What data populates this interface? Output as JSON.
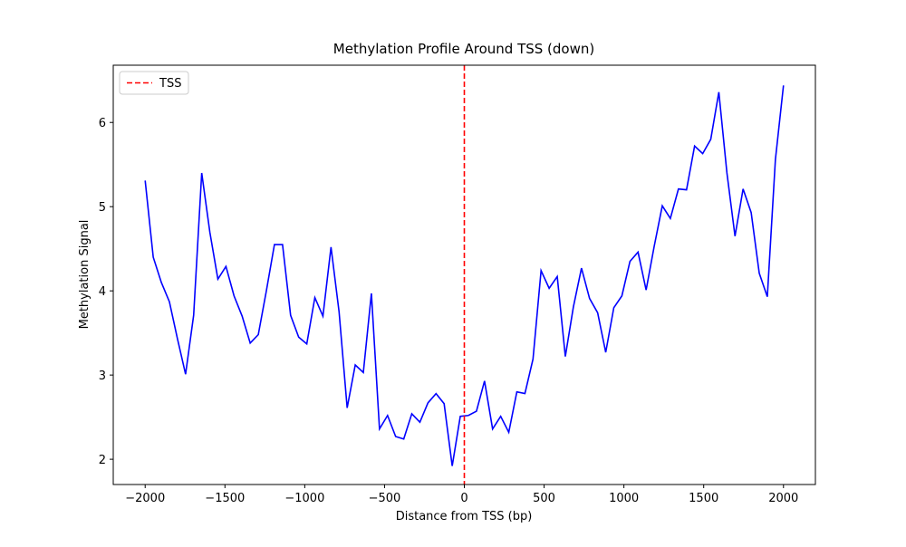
{
  "chart_data": {
    "type": "line",
    "title": "Methylation Profile Around TSS (down)",
    "x_label": "Distance from TSS (bp)",
    "y_label": "Methylation Signal",
    "x": [
      -2000,
      -1949.4,
      -1898.7,
      -1848.1,
      -1797.5,
      -1746.8,
      -1696.2,
      -1645.6,
      -1594.9,
      -1544.3,
      -1493.7,
      -1443.0,
      -1392.4,
      -1341.8,
      -1291.1,
      -1240.5,
      -1189.9,
      -1139.2,
      -1088.6,
      -1038.0,
      -987.3,
      -936.7,
      -886.1,
      -835.4,
      -784.8,
      -734.2,
      -683.5,
      -632.9,
      -582.3,
      -531.6,
      -481.0,
      -430.4,
      -379.7,
      -329.1,
      -278.5,
      -227.8,
      -177.2,
      -126.6,
      -75.9,
      -25.3,
      25.3,
      75.9,
      126.6,
      177.2,
      227.8,
      278.5,
      329.1,
      379.7,
      430.4,
      481.0,
      531.6,
      582.3,
      632.9,
      683.5,
      734.2,
      784.8,
      835.4,
      886.1,
      936.7,
      987.3,
      1038.0,
      1088.6,
      1139.2,
      1189.9,
      1240.5,
      1291.1,
      1341.8,
      1392.4,
      1443.0,
      1493.7,
      1544.3,
      1594.9,
      1645.6,
      1696.2,
      1746.8,
      1797.5,
      1848.1,
      1898.7,
      1949.4,
      2000
    ],
    "series": [
      {
        "name": "Methylation Signal",
        "color": "#0000ff",
        "values": [
          5.31,
          4.4,
          4.1,
          3.87,
          3.43,
          3.01,
          3.71,
          5.4,
          4.7,
          4.14,
          4.29,
          3.94,
          3.7,
          3.38,
          3.48,
          4.0,
          4.55,
          4.55,
          3.71,
          3.45,
          3.37,
          3.92,
          3.7,
          4.52,
          3.75,
          2.61,
          3.12,
          3.03,
          3.97,
          2.36,
          2.52,
          2.27,
          2.24,
          2.54,
          2.44,
          2.67,
          2.78,
          2.66,
          1.92,
          2.51,
          2.52,
          2.57,
          2.93,
          2.36,
          2.51,
          2.32,
          2.8,
          2.78,
          3.19,
          4.24,
          4.03,
          4.17,
          3.22,
          3.81,
          4.27,
          3.91,
          3.74,
          3.27,
          3.8,
          3.94,
          4.35,
          4.46,
          4.01,
          4.53,
          5.01,
          4.86,
          5.21,
          5.2,
          5.72,
          5.63,
          5.8,
          6.36,
          5.4,
          4.65,
          5.21,
          4.93,
          4.21,
          3.93,
          5.56,
          6.44
        ]
      }
    ],
    "vlines": [
      {
        "x": 0,
        "name": "TSS",
        "color": "#ff0000"
      }
    ],
    "xlim": [
      -2200,
      2200
    ],
    "ylim": [
      1.7,
      6.68
    ],
    "xticks": [
      {
        "value": -2000,
        "label": "−2000"
      },
      {
        "value": -1500,
        "label": "−1500"
      },
      {
        "value": -1000,
        "label": "−1000"
      },
      {
        "value": -500,
        "label": "−500"
      },
      0,
      500,
      1000,
      1500,
      2000
    ],
    "yticks": [
      2,
      3,
      4,
      5,
      6
    ],
    "legend": "upper left"
  }
}
